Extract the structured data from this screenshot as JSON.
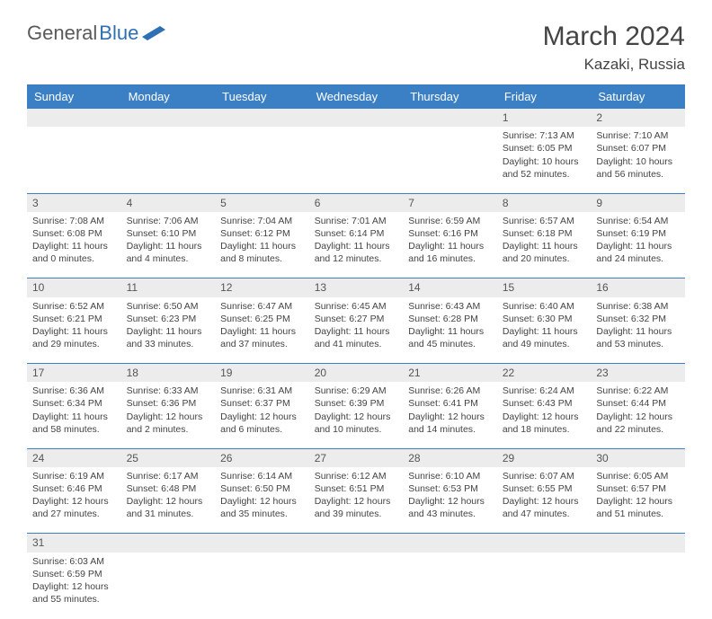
{
  "brand": {
    "part1": "General",
    "part2": "Blue"
  },
  "title": "March 2024",
  "location": "Kazaki, Russia",
  "colors": {
    "header_bg": "#3b7fc4",
    "header_text": "#ffffff",
    "daynum_bg": "#ececec",
    "text": "#444444",
    "rule": "#3b7fc4"
  },
  "dayHeaders": [
    "Sunday",
    "Monday",
    "Tuesday",
    "Wednesday",
    "Thursday",
    "Friday",
    "Saturday"
  ],
  "weeks": [
    [
      null,
      null,
      null,
      null,
      null,
      {
        "n": "1",
        "sr": "Sunrise: 7:13 AM",
        "ss": "Sunset: 6:05 PM",
        "dl": "Daylight: 10 hours and 52 minutes."
      },
      {
        "n": "2",
        "sr": "Sunrise: 7:10 AM",
        "ss": "Sunset: 6:07 PM",
        "dl": "Daylight: 10 hours and 56 minutes."
      }
    ],
    [
      {
        "n": "3",
        "sr": "Sunrise: 7:08 AM",
        "ss": "Sunset: 6:08 PM",
        "dl": "Daylight: 11 hours and 0 minutes."
      },
      {
        "n": "4",
        "sr": "Sunrise: 7:06 AM",
        "ss": "Sunset: 6:10 PM",
        "dl": "Daylight: 11 hours and 4 minutes."
      },
      {
        "n": "5",
        "sr": "Sunrise: 7:04 AM",
        "ss": "Sunset: 6:12 PM",
        "dl": "Daylight: 11 hours and 8 minutes."
      },
      {
        "n": "6",
        "sr": "Sunrise: 7:01 AM",
        "ss": "Sunset: 6:14 PM",
        "dl": "Daylight: 11 hours and 12 minutes."
      },
      {
        "n": "7",
        "sr": "Sunrise: 6:59 AM",
        "ss": "Sunset: 6:16 PM",
        "dl": "Daylight: 11 hours and 16 minutes."
      },
      {
        "n": "8",
        "sr": "Sunrise: 6:57 AM",
        "ss": "Sunset: 6:18 PM",
        "dl": "Daylight: 11 hours and 20 minutes."
      },
      {
        "n": "9",
        "sr": "Sunrise: 6:54 AM",
        "ss": "Sunset: 6:19 PM",
        "dl": "Daylight: 11 hours and 24 minutes."
      }
    ],
    [
      {
        "n": "10",
        "sr": "Sunrise: 6:52 AM",
        "ss": "Sunset: 6:21 PM",
        "dl": "Daylight: 11 hours and 29 minutes."
      },
      {
        "n": "11",
        "sr": "Sunrise: 6:50 AM",
        "ss": "Sunset: 6:23 PM",
        "dl": "Daylight: 11 hours and 33 minutes."
      },
      {
        "n": "12",
        "sr": "Sunrise: 6:47 AM",
        "ss": "Sunset: 6:25 PM",
        "dl": "Daylight: 11 hours and 37 minutes."
      },
      {
        "n": "13",
        "sr": "Sunrise: 6:45 AM",
        "ss": "Sunset: 6:27 PM",
        "dl": "Daylight: 11 hours and 41 minutes."
      },
      {
        "n": "14",
        "sr": "Sunrise: 6:43 AM",
        "ss": "Sunset: 6:28 PM",
        "dl": "Daylight: 11 hours and 45 minutes."
      },
      {
        "n": "15",
        "sr": "Sunrise: 6:40 AM",
        "ss": "Sunset: 6:30 PM",
        "dl": "Daylight: 11 hours and 49 minutes."
      },
      {
        "n": "16",
        "sr": "Sunrise: 6:38 AM",
        "ss": "Sunset: 6:32 PM",
        "dl": "Daylight: 11 hours and 53 minutes."
      }
    ],
    [
      {
        "n": "17",
        "sr": "Sunrise: 6:36 AM",
        "ss": "Sunset: 6:34 PM",
        "dl": "Daylight: 11 hours and 58 minutes."
      },
      {
        "n": "18",
        "sr": "Sunrise: 6:33 AM",
        "ss": "Sunset: 6:36 PM",
        "dl": "Daylight: 12 hours and 2 minutes."
      },
      {
        "n": "19",
        "sr": "Sunrise: 6:31 AM",
        "ss": "Sunset: 6:37 PM",
        "dl": "Daylight: 12 hours and 6 minutes."
      },
      {
        "n": "20",
        "sr": "Sunrise: 6:29 AM",
        "ss": "Sunset: 6:39 PM",
        "dl": "Daylight: 12 hours and 10 minutes."
      },
      {
        "n": "21",
        "sr": "Sunrise: 6:26 AM",
        "ss": "Sunset: 6:41 PM",
        "dl": "Daylight: 12 hours and 14 minutes."
      },
      {
        "n": "22",
        "sr": "Sunrise: 6:24 AM",
        "ss": "Sunset: 6:43 PM",
        "dl": "Daylight: 12 hours and 18 minutes."
      },
      {
        "n": "23",
        "sr": "Sunrise: 6:22 AM",
        "ss": "Sunset: 6:44 PM",
        "dl": "Daylight: 12 hours and 22 minutes."
      }
    ],
    [
      {
        "n": "24",
        "sr": "Sunrise: 6:19 AM",
        "ss": "Sunset: 6:46 PM",
        "dl": "Daylight: 12 hours and 27 minutes."
      },
      {
        "n": "25",
        "sr": "Sunrise: 6:17 AM",
        "ss": "Sunset: 6:48 PM",
        "dl": "Daylight: 12 hours and 31 minutes."
      },
      {
        "n": "26",
        "sr": "Sunrise: 6:14 AM",
        "ss": "Sunset: 6:50 PM",
        "dl": "Daylight: 12 hours and 35 minutes."
      },
      {
        "n": "27",
        "sr": "Sunrise: 6:12 AM",
        "ss": "Sunset: 6:51 PM",
        "dl": "Daylight: 12 hours and 39 minutes."
      },
      {
        "n": "28",
        "sr": "Sunrise: 6:10 AM",
        "ss": "Sunset: 6:53 PM",
        "dl": "Daylight: 12 hours and 43 minutes."
      },
      {
        "n": "29",
        "sr": "Sunrise: 6:07 AM",
        "ss": "Sunset: 6:55 PM",
        "dl": "Daylight: 12 hours and 47 minutes."
      },
      {
        "n": "30",
        "sr": "Sunrise: 6:05 AM",
        "ss": "Sunset: 6:57 PM",
        "dl": "Daylight: 12 hours and 51 minutes."
      }
    ],
    [
      {
        "n": "31",
        "sr": "Sunrise: 6:03 AM",
        "ss": "Sunset: 6:59 PM",
        "dl": "Daylight: 12 hours and 55 minutes."
      },
      null,
      null,
      null,
      null,
      null,
      null
    ]
  ]
}
